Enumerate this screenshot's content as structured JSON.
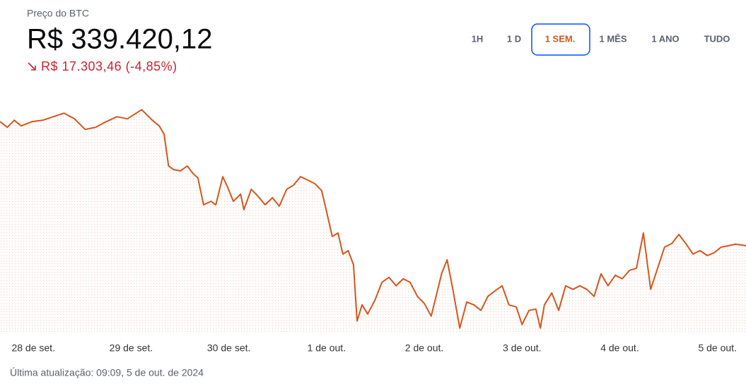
{
  "header": {
    "title": "Preço do BTC",
    "price": "R$ 339.420,12",
    "change": "R$ 17.303,46 (-4,85%)"
  },
  "range_buttons": {
    "items": [
      "1H",
      "1 D",
      "1 SEM.",
      "1 MÊS",
      "1 ANO",
      "TUDO"
    ],
    "selected": "1 SEM."
  },
  "footer": "Última atualização: 09:09, 5 de out. de 2024",
  "chart_data": {
    "type": "line",
    "color": "#d4561d",
    "x": [
      -8.2,
      -6.4,
      -4.7,
      -3.0,
      -0.3,
      2.3,
      4.9,
      7.5,
      10.1,
      12.7,
      15.3,
      17.9,
      20.5,
      23.1,
      26.6,
      29.2,
      30.9,
      32.1,
      33.2,
      34.4,
      36.1,
      37.8,
      39.1,
      40.4,
      41.8,
      43.6,
      44.8,
      46.5,
      47.7,
      49.1,
      50.9,
      51.7,
      53.5,
      55.2,
      56.9,
      58.7,
      60.4,
      62.2,
      63.9,
      65.6,
      67.4,
      69.1,
      70.8,
      72.0,
      73.4,
      74.8,
      76.0,
      77.3,
      78.6,
      79.5,
      80.7,
      82.1,
      83.9,
      85.6,
      87.3,
      89.1,
      90.8,
      92.5,
      94.3,
      96.0,
      97.7,
      99.1,
      100.3,
      101.6,
      103.0,
      104.7,
      106.4,
      108.2,
      109.9,
      111.6,
      113.4,
      115.1,
      116.8,
      118.6,
      120.0,
      121.7,
      123.4,
      124.5,
      125.5,
      127.3,
      129.0,
      130.7,
      132.5,
      134.2,
      135.9,
      137.7,
      139.4,
      141.1,
      142.9,
      144.6,
      146.4,
      148.1,
      149.8,
      151.6,
      153.3,
      155.0,
      156.8,
      158.5,
      160.2,
      162.0,
      163.7,
      165.5,
      167.2,
      168.9,
      170.7,
      172.4,
      175.0
    ],
    "values": [
      356720,
      355930,
      356920,
      356130,
      356720,
      356920,
      357410,
      357900,
      357110,
      355640,
      355930,
      356720,
      357410,
      357110,
      358390,
      356920,
      356130,
      354950,
      350530,
      350040,
      349840,
      350530,
      349550,
      348860,
      345120,
      345610,
      345120,
      349050,
      347580,
      345610,
      346600,
      344430,
      347280,
      346300,
      345120,
      346100,
      344930,
      347280,
      347870,
      349050,
      348560,
      348070,
      347090,
      344140,
      340700,
      341190,
      338240,
      338730,
      336770,
      328900,
      331160,
      329890,
      331850,
      334310,
      335000,
      333820,
      334800,
      334310,
      332340,
      331360,
      329590,
      332830,
      335590,
      337450,
      333330,
      327920,
      331560,
      331160,
      330380,
      332340,
      333130,
      333820,
      331160,
      330870,
      328410,
      330380,
      330570,
      327920,
      331160,
      332830,
      330380,
      333820,
      333330,
      333820,
      333330,
      332340,
      335490,
      333820,
      335290,
      334800,
      335980,
      336270,
      341190,
      333330,
      336270,
      339220,
      339720,
      340990,
      339720,
      338240,
      338730,
      338040,
      338440,
      339220,
      339420,
      339620,
      339420.12
    ],
    "xlim": [
      -8.2,
      175.0
    ],
    "ylim": [
      327400,
      359900
    ],
    "xticks": [
      {
        "value": 0,
        "label": "28 de set."
      },
      {
        "value": 24,
        "label": "29 de set."
      },
      {
        "value": 48,
        "label": "30 de set."
      },
      {
        "value": 72,
        "label": "1 de out."
      },
      {
        "value": 96,
        "label": "2 de out."
      },
      {
        "value": 120,
        "label": "3 de out."
      },
      {
        "value": 144,
        "label": "4 de out."
      },
      {
        "value": 168,
        "label": "5 de out."
      }
    ]
  }
}
